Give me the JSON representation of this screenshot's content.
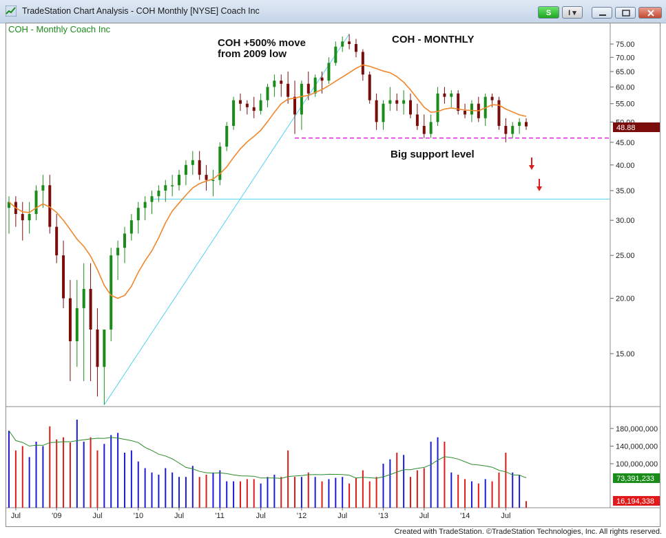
{
  "window": {
    "title": "TradeStation Chart Analysis - COH Monthly [NYSE] Coach Inc",
    "s_button": "S",
    "i_button": "I"
  },
  "chart": {
    "symbol_label": "COH - Monthly  Coach Inc",
    "annotation_move_line1": "COH +500% move",
    "annotation_move_line2": "from 2009 low",
    "annotation_title": "COH - MONTHLY",
    "annotation_support": "Big support level",
    "last_price_label": "48.88",
    "volume_label": "73,391,233",
    "last_volume_label": "16,194,338"
  },
  "colors": {
    "up": "#1a8c1a",
    "down": "#7a0c0c",
    "ma": "#f0862a",
    "trendline": "#52d3ee",
    "support": "#e020e0",
    "vol_up": "#1a1ad8",
    "vol_down": "#e01a1a",
    "vol_ma": "#2a8a2a"
  },
  "footer": {
    "text": "Created with TradeStation. ©TradeStation Technologies, Inc. All rights reserved."
  },
  "chart_data": {
    "type": "candlestick",
    "title": "COH - MONTHLY",
    "y_axis_ticks": [
      "75.00",
      "70.00",
      "65.00",
      "60.00",
      "55.00",
      "50.00",
      "45.00",
      "40.00",
      "35.00",
      "30.00",
      "25.00",
      "20.00",
      "15.00"
    ],
    "volume_axis_ticks": [
      "180,000,000",
      "140,000,000",
      "100,000,000"
    ],
    "x_axis_labels": [
      "Jul",
      "'09",
      "Jul",
      "'10",
      "Jul",
      "'11",
      "Jul",
      "'12",
      "Jul",
      "'13",
      "Jul",
      "'14",
      "Jul"
    ],
    "support_level": 46,
    "horizontal_line": 33.5,
    "last_price": 48.88,
    "low_2009": 11.5,
    "high_2012": 79,
    "ohlc": [
      [
        32,
        34,
        28,
        33
      ],
      [
        33,
        34,
        29,
        31
      ],
      [
        31,
        33,
        27,
        30
      ],
      [
        30,
        33,
        28,
        31
      ],
      [
        31,
        36,
        30,
        35
      ],
      [
        35,
        38,
        32,
        36
      ],
      [
        36,
        38,
        28,
        29
      ],
      [
        29,
        31,
        24,
        25
      ],
      [
        25,
        27,
        19,
        20
      ],
      [
        20,
        22,
        13,
        16
      ],
      [
        16,
        22,
        14,
        19
      ],
      [
        19,
        24,
        13,
        21
      ],
      [
        21,
        24,
        13,
        17
      ],
      [
        17,
        19,
        12,
        14
      ],
      [
        14,
        17,
        11.5,
        17
      ],
      [
        17,
        26,
        16,
        25
      ],
      [
        25,
        27,
        22,
        26
      ],
      [
        26,
        29,
        24,
        28
      ],
      [
        28,
        31,
        27,
        30
      ],
      [
        30,
        33,
        28,
        32
      ],
      [
        32,
        34,
        30,
        33
      ],
      [
        33,
        35,
        31,
        34
      ],
      [
        34,
        36,
        33,
        35
      ],
      [
        35,
        37,
        33,
        36
      ],
      [
        36,
        38,
        34,
        36
      ],
      [
        36,
        39,
        35,
        38
      ],
      [
        38,
        41,
        36,
        40
      ],
      [
        40,
        43,
        38,
        41
      ],
      [
        41,
        43,
        37,
        38
      ],
      [
        38,
        40,
        35,
        37
      ],
      [
        37,
        39,
        34,
        37
      ],
      [
        37,
        45,
        36,
        44
      ],
      [
        44,
        50,
        43,
        49
      ],
      [
        49,
        57,
        48,
        56
      ],
      [
        56,
        58,
        53,
        55
      ],
      [
        55,
        56,
        52,
        54
      ],
      [
        54,
        57,
        51,
        53
      ],
      [
        53,
        58,
        52,
        56
      ],
      [
        56,
        61,
        54,
        60
      ],
      [
        60,
        64,
        57,
        62
      ],
      [
        62,
        64,
        57,
        61
      ],
      [
        61,
        65,
        55,
        57
      ],
      [
        57,
        62,
        47,
        52
      ],
      [
        52,
        62,
        48,
        61
      ],
      [
        61,
        65,
        56,
        58
      ],
      [
        58,
        64,
        57,
        63
      ],
      [
        63,
        65,
        58,
        62
      ],
      [
        62,
        70,
        61,
        68
      ],
      [
        68,
        76,
        67,
        74
      ],
      [
        74,
        78,
        72,
        76
      ],
      [
        76,
        79,
        73,
        75
      ],
      [
        75,
        77,
        70,
        72
      ],
      [
        72,
        73,
        62,
        64
      ],
      [
        64,
        65,
        55,
        56
      ],
      [
        56,
        58,
        48,
        50
      ],
      [
        50,
        56,
        48,
        55
      ],
      [
        55,
        60,
        53,
        56
      ],
      [
        56,
        58,
        53,
        55
      ],
      [
        55,
        59,
        52,
        56
      ],
      [
        56,
        58,
        51,
        52
      ],
      [
        52,
        55,
        48,
        49
      ],
      [
        49,
        52,
        46,
        47
      ],
      [
        47,
        52,
        46,
        50
      ],
      [
        50,
        60,
        49,
        58
      ],
      [
        58,
        60,
        55,
        57
      ],
      [
        57,
        59,
        54,
        58
      ],
      [
        58,
        59,
        52,
        53
      ],
      [
        53,
        55,
        51,
        52
      ],
      [
        52,
        56,
        50,
        55
      ],
      [
        55,
        57,
        50,
        51
      ],
      [
        51,
        58,
        49,
        57
      ],
      [
        57,
        58,
        54,
        56
      ],
      [
        56,
        57,
        48,
        49
      ],
      [
        49,
        51,
        45,
        47
      ],
      [
        47,
        50,
        46,
        49
      ],
      [
        49,
        51,
        47,
        50
      ],
      [
        50,
        51,
        48,
        48.88
      ]
    ],
    "volume_millions": [
      175,
      130,
      140,
      115,
      150,
      140,
      185,
      155,
      160,
      148,
      200,
      150,
      160,
      130,
      145,
      165,
      170,
      125,
      130,
      105,
      90,
      80,
      75,
      90,
      80,
      70,
      70,
      95,
      70,
      75,
      80,
      85,
      60,
      60,
      60,
      65,
      65,
      55,
      70,
      75,
      70,
      130,
      70,
      70,
      80,
      70,
      60,
      65,
      68,
      70,
      55,
      68,
      85,
      60,
      70,
      100,
      110,
      125,
      120,
      70,
      85,
      90,
      150,
      160,
      150,
      80,
      75,
      65,
      60,
      55,
      65,
      60,
      80,
      125,
      80,
      75,
      15
    ],
    "series": [
      {
        "name": "Price (monthly OHLC)"
      },
      {
        "name": "Moving average"
      },
      {
        "name": "Volume"
      }
    ]
  }
}
